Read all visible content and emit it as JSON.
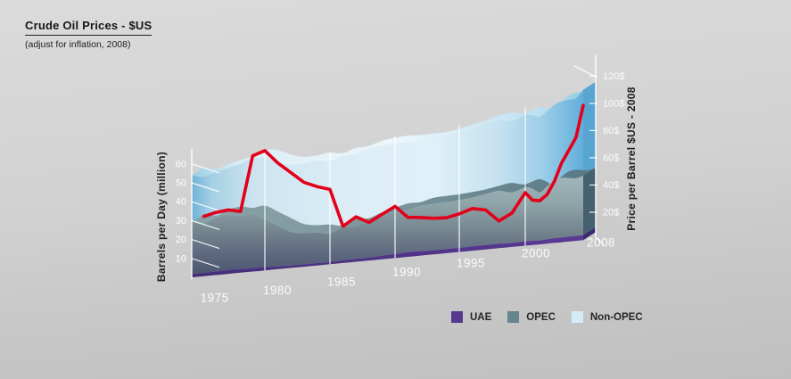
{
  "header": {
    "title": "Crude Oil Prices - $US",
    "subtitle": "(adjust for inflation, 2008)"
  },
  "legend": {
    "items": [
      {
        "label": "UAE",
        "color": "#57398f"
      },
      {
        "label": "OPEC",
        "color": "#64868c"
      },
      {
        "label": "Non-OPEC",
        "color": "#d3edf8"
      }
    ]
  },
  "chart_data": {
    "type": "area",
    "style": "3d-stacked-area-with-price-line",
    "years_start": 1974,
    "x_tick_labels": [
      "1975",
      "1980",
      "1985",
      "1990",
      "1995",
      "2000",
      "2008"
    ],
    "left_axis": {
      "title": "Barrels per Day (million)",
      "tick_labels": [
        "10",
        "20",
        "30",
        "40",
        "50",
        "60"
      ],
      "tick_values": [
        10,
        20,
        30,
        40,
        50,
        60
      ]
    },
    "right_axis": {
      "title": "Price per Barrel $US - 2008",
      "tick_labels": [
        "20$",
        "40$",
        "60$",
        "80$",
        "100$",
        "120$"
      ],
      "tick_values": [
        20,
        40,
        60,
        80,
        100,
        120
      ]
    },
    "series": [
      {
        "name": "UAE",
        "color": "#57398f",
        "values": [
          1.8,
          1.8,
          1.9,
          2.0,
          1.9,
          1.8,
          1.7,
          1.5,
          1.3,
          1.2,
          1.2,
          1.2,
          1.4,
          1.5,
          1.6,
          1.9,
          2.1,
          2.4,
          2.3,
          2.2,
          2.2,
          2.2,
          2.3,
          2.3,
          2.3,
          2.1,
          2.3,
          2.2,
          2.0,
          2.3,
          2.5,
          2.5,
          2.6,
          2.6,
          2.6
        ]
      },
      {
        "name": "OPEC",
        "color": "#64868c",
        "values": [
          27.5,
          26.0,
          28.5,
          29.3,
          28.2,
          28.8,
          25.3,
          21.5,
          17.8,
          16.5,
          16.3,
          15.0,
          17.5,
          17.2,
          19.5,
          21.0,
          22.5,
          22.3,
          24.0,
          24.5,
          24.7,
          25.2,
          25.8,
          27.0,
          28.0,
          26.8,
          28.5,
          27.5,
          25.5,
          28.0,
          30.5,
          31.5,
          31.0,
          30.5,
          31.5
        ]
      },
      {
        "name": "Non-OPEC",
        "color": "#d3edf8",
        "values": [
          24.7,
          24.7,
          24.1,
          24.7,
          27.4,
          29.4,
          32.5,
          33.5,
          35.4,
          36.8,
          38.0,
          38.3,
          37.6,
          38.3,
          37.9,
          37.1,
          35.9,
          35.5,
          34.0,
          33.8,
          34.6,
          35.6,
          36.4,
          37.2,
          37.2,
          37.6,
          38.2,
          38.8,
          40.0,
          39.7,
          40.0,
          40.5,
          41.4,
          42.4,
          45.4
        ]
      }
    ],
    "price_line": {
      "name": "Crude oil price ($US per barrel, 2008 dollars)",
      "color": "#e2001a",
      "years_start": 1975,
      "values": [
        44,
        46,
        47,
        45,
        85,
        88,
        78,
        70,
        62,
        58,
        55,
        27,
        33,
        28,
        33,
        38,
        29,
        28,
        26.5,
        26,
        28,
        31,
        29,
        20,
        25,
        39,
        33,
        32,
        36,
        45,
        58,
        67,
        76,
        99
      ]
    }
  }
}
